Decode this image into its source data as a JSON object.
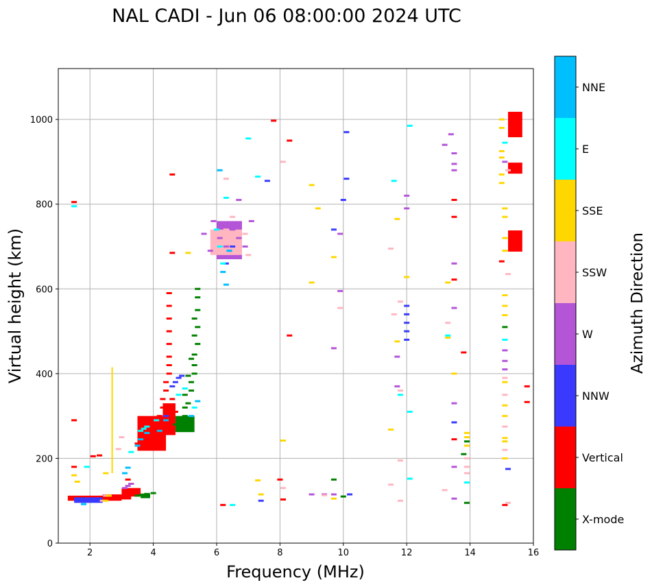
{
  "chart_data": {
    "type": "scatter",
    "title": "NAL CADI - Jun 06 08:00:00 2024 UTC",
    "xlabel": "Frequency (MHz)",
    "ylabel": "Virtual height (km)",
    "xlim": [
      1,
      16
    ],
    "ylim": [
      0,
      1120
    ],
    "xticks": [
      2,
      4,
      6,
      8,
      10,
      12,
      14,
      16
    ],
    "yticks": [
      0,
      200,
      400,
      600,
      800,
      1000
    ],
    "grid": true,
    "colorbar": {
      "title": "Azimuth Direction",
      "categories": [
        {
          "name": "X-mode",
          "color": "#008000"
        },
        {
          "name": "Vertical",
          "color": "#ff0000"
        },
        {
          "name": "NNW",
          "color": "#3a3aff"
        },
        {
          "name": "W",
          "color": "#b455d8"
        },
        {
          "name": "SSW",
          "color": "#ffb6c1"
        },
        {
          "name": "SSE",
          "color": "#ffd700"
        },
        {
          "name": "E",
          "color": "#00ffff"
        },
        {
          "name": "NNE",
          "color": "#00bfff"
        }
      ]
    },
    "series": [
      {
        "name": "X-mode",
        "points": [
          [
            3.5,
            112
          ],
          [
            3.6,
            113
          ],
          [
            3.7,
            110
          ],
          [
            3.8,
            116
          ],
          [
            4.0,
            118
          ],
          [
            4.7,
            280
          ],
          [
            4.8,
            285
          ],
          [
            4.9,
            290
          ],
          [
            5.0,
            300
          ],
          [
            5.0,
            320
          ],
          [
            5.1,
            330
          ],
          [
            5.2,
            360
          ],
          [
            5.2,
            380
          ],
          [
            5.3,
            400
          ],
          [
            5.3,
            420
          ],
          [
            5.3,
            445
          ],
          [
            5.4,
            470
          ],
          [
            5.3,
            490
          ],
          [
            5.4,
            510
          ],
          [
            5.3,
            530
          ],
          [
            5.4,
            550
          ],
          [
            5.4,
            580
          ],
          [
            5.4,
            600
          ],
          [
            5.0,
            350
          ],
          [
            5.1,
            395
          ],
          [
            5.2,
            435
          ],
          [
            13.9,
            95
          ],
          [
            13.9,
            240
          ],
          [
            13.8,
            210
          ],
          [
            15.1,
            510
          ],
          [
            10.0,
            110
          ],
          [
            9.7,
            150
          ]
        ]
      },
      {
        "name": "Vertical",
        "points": [
          [
            1.5,
            805
          ],
          [
            1.5,
            290
          ],
          [
            1.5,
            180
          ],
          [
            2.1,
            205
          ],
          [
            2.3,
            207
          ],
          [
            3.2,
            150
          ],
          [
            3.3,
            140
          ],
          [
            3.5,
            235
          ],
          [
            3.6,
            228
          ],
          [
            3.7,
            240
          ],
          [
            3.8,
            250
          ],
          [
            3.9,
            262
          ],
          [
            4.0,
            255
          ],
          [
            4.1,
            270
          ],
          [
            4.1,
            285
          ],
          [
            4.2,
            300
          ],
          [
            4.3,
            320
          ],
          [
            4.3,
            340
          ],
          [
            4.4,
            360
          ],
          [
            4.4,
            380
          ],
          [
            4.5,
            400
          ],
          [
            4.5,
            420
          ],
          [
            4.5,
            440
          ],
          [
            4.5,
            470
          ],
          [
            4.5,
            500
          ],
          [
            4.5,
            530
          ],
          [
            4.5,
            560
          ],
          [
            4.5,
            590
          ],
          [
            4.6,
            340
          ],
          [
            4.7,
            310
          ],
          [
            4.6,
            685
          ],
          [
            4.6,
            870
          ],
          [
            8.3,
            950
          ],
          [
            8.3,
            490
          ],
          [
            8.0,
            150
          ],
          [
            8.1,
            103
          ],
          [
            6.2,
            90
          ],
          [
            7.8,
            997
          ],
          [
            13.5,
            770
          ],
          [
            13.5,
            810
          ],
          [
            13.5,
            622
          ],
          [
            13.5,
            245
          ],
          [
            13.8,
            450
          ],
          [
            15.0,
            665
          ],
          [
            15.1,
            90
          ],
          [
            15.8,
            333
          ],
          [
            15.8,
            370
          ]
        ]
      },
      {
        "name": "NNW",
        "points": [
          [
            4.6,
            370
          ],
          [
            4.7,
            380
          ],
          [
            4.8,
            390
          ],
          [
            4.9,
            395
          ],
          [
            4.4,
            300
          ],
          [
            6.3,
            660
          ],
          [
            6.4,
            690
          ],
          [
            6.5,
            700
          ],
          [
            7.6,
            855
          ],
          [
            10.1,
            970
          ],
          [
            10.1,
            860
          ],
          [
            10.0,
            810
          ],
          [
            12.0,
            560
          ],
          [
            12.0,
            540
          ],
          [
            12.0,
            520
          ],
          [
            12.0,
            500
          ],
          [
            12.0,
            480
          ],
          [
            13.5,
            285
          ],
          [
            15.2,
            175
          ],
          [
            7.4,
            100
          ],
          [
            10.2,
            115
          ],
          [
            9.7,
            740
          ]
        ]
      },
      {
        "name": "W",
        "points": [
          [
            3.1,
            130
          ],
          [
            3.2,
            135
          ],
          [
            3.3,
            140
          ],
          [
            5.9,
            760
          ],
          [
            6.1,
            720
          ],
          [
            6.3,
            700
          ],
          [
            6.5,
            740
          ],
          [
            6.7,
            720
          ],
          [
            6.9,
            700
          ],
          [
            7.1,
            760
          ],
          [
            6.7,
            810
          ],
          [
            5.6,
            730
          ],
          [
            5.8,
            690
          ],
          [
            9.9,
            730
          ],
          [
            9.7,
            460
          ],
          [
            9.9,
            595
          ],
          [
            11.7,
            440
          ],
          [
            11.7,
            370
          ],
          [
            12.0,
            820
          ],
          [
            12.0,
            790
          ],
          [
            13.2,
            940
          ],
          [
            13.4,
            965
          ],
          [
            13.5,
            920
          ],
          [
            13.5,
            895
          ],
          [
            13.5,
            880
          ],
          [
            13.5,
            660
          ],
          [
            13.5,
            555
          ],
          [
            13.5,
            330
          ],
          [
            13.5,
            180
          ],
          [
            13.5,
            105
          ],
          [
            15.1,
            455
          ],
          [
            15.1,
            430
          ],
          [
            15.1,
            410
          ],
          [
            15.1,
            900
          ],
          [
            9.0,
            115
          ],
          [
            9.4,
            115
          ],
          [
            9.7,
            115
          ]
        ]
      },
      {
        "name": "SSW",
        "points": [
          [
            2.9,
            222
          ],
          [
            3.0,
            250
          ],
          [
            5.9,
            700
          ],
          [
            6.1,
            690
          ],
          [
            6.3,
            740
          ],
          [
            6.5,
            770
          ],
          [
            6.9,
            730
          ],
          [
            7.0,
            680
          ],
          [
            6.3,
            860
          ],
          [
            8.1,
            900
          ],
          [
            8.1,
            130
          ],
          [
            11.5,
            695
          ],
          [
            11.6,
            540
          ],
          [
            11.8,
            570
          ],
          [
            11.8,
            360
          ],
          [
            11.8,
            195
          ],
          [
            11.5,
            138
          ],
          [
            11.8,
            100
          ],
          [
            13.3,
            520
          ],
          [
            13.2,
            125
          ],
          [
            13.9,
            200
          ],
          [
            13.9,
            180
          ],
          [
            13.9,
            165
          ],
          [
            15.2,
            880
          ],
          [
            15.2,
            635
          ],
          [
            15.1,
            390
          ],
          [
            15.1,
            350
          ],
          [
            15.1,
            275
          ],
          [
            15.1,
            220
          ],
          [
            15.2,
            95
          ],
          [
            9.9,
            555
          ],
          [
            9.4,
            113
          ],
          [
            2.4,
            100
          ],
          [
            2.5,
            112
          ]
        ]
      },
      {
        "name": "SSE",
        "points": [
          [
            1.6,
            145
          ],
          [
            1.5,
            160
          ],
          [
            2.5,
            165
          ],
          [
            2.5,
            100
          ],
          [
            2.6,
            112
          ],
          [
            5.1,
            685
          ],
          [
            7.3,
            148
          ],
          [
            7.4,
            115
          ],
          [
            8.1,
            242
          ],
          [
            9.0,
            845
          ],
          [
            9.0,
            615
          ],
          [
            9.2,
            790
          ],
          [
            9.7,
            675
          ],
          [
            9.7,
            105
          ],
          [
            12.0,
            628
          ],
          [
            11.7,
            765
          ],
          [
            11.7,
            476
          ],
          [
            11.5,
            268
          ],
          [
            13.3,
            615
          ],
          [
            13.3,
            485
          ],
          [
            13.5,
            400
          ],
          [
            13.9,
            260
          ],
          [
            13.9,
            250
          ],
          [
            13.9,
            230
          ],
          [
            15.0,
            1000
          ],
          [
            15.0,
            980
          ],
          [
            15.0,
            925
          ],
          [
            15.0,
            910
          ],
          [
            15.0,
            870
          ],
          [
            15.0,
            850
          ],
          [
            15.1,
            790
          ],
          [
            15.1,
            770
          ],
          [
            15.1,
            720
          ],
          [
            15.1,
            690
          ],
          [
            15.1,
            585
          ],
          [
            15.1,
            560
          ],
          [
            15.1,
            538
          ],
          [
            15.1,
            380
          ],
          [
            15.1,
            325
          ],
          [
            15.1,
            300
          ],
          [
            15.1,
            248
          ],
          [
            15.1,
            240
          ],
          [
            15.1,
            200
          ]
        ]
      },
      {
        "name": "E",
        "points": [
          [
            1.5,
            795
          ],
          [
            1.9,
            180
          ],
          [
            3.3,
            215
          ],
          [
            3.6,
            265
          ],
          [
            3.7,
            270
          ],
          [
            3.8,
            275
          ],
          [
            4.1,
            290
          ],
          [
            4.8,
            350
          ],
          [
            5.0,
            365
          ],
          [
            5.3,
            320
          ],
          [
            6.0,
            740
          ],
          [
            6.1,
            700
          ],
          [
            6.2,
            660
          ],
          [
            6.3,
            815
          ],
          [
            7.0,
            955
          ],
          [
            7.3,
            865
          ],
          [
            11.6,
            855
          ],
          [
            12.1,
            985
          ],
          [
            12.1,
            310
          ],
          [
            12.1,
            152
          ],
          [
            11.8,
            350
          ],
          [
            13.3,
            490
          ],
          [
            13.9,
            143
          ],
          [
            15.1,
            945
          ],
          [
            15.1,
            480
          ],
          [
            6.5,
            90
          ]
        ]
      },
      {
        "name": "NNE",
        "points": [
          [
            1.8,
            92
          ],
          [
            3.1,
            165
          ],
          [
            3.2,
            178
          ],
          [
            3.5,
            230
          ],
          [
            3.6,
            245
          ],
          [
            3.8,
            260
          ],
          [
            4.2,
            265
          ],
          [
            4.4,
            290
          ],
          [
            5.2,
            300
          ],
          [
            5.4,
            335
          ],
          [
            6.2,
            640
          ],
          [
            6.3,
            610
          ],
          [
            6.4,
            690
          ],
          [
            6.1,
            880
          ]
        ]
      }
    ],
    "regions": [
      {
        "name": "Vertical",
        "x": [
          1.3,
          3.0
        ],
        "y": [
          100,
          112
        ]
      },
      {
        "name": "NNW",
        "x": [
          1.5,
          2.4
        ],
        "y": [
          95,
          108
        ]
      },
      {
        "name": "Vertical",
        "x": [
          2.4,
          3.3
        ],
        "y": [
          103,
          115
        ]
      },
      {
        "name": "Vertical",
        "x": [
          3.0,
          3.6
        ],
        "y": [
          110,
          130
        ]
      },
      {
        "name": "X-mode",
        "x": [
          3.6,
          3.9
        ],
        "y": [
          106,
          117
        ]
      },
      {
        "name": "Vertical",
        "x": [
          3.5,
          4.4
        ],
        "y": [
          218,
          300
        ]
      },
      {
        "name": "Vertical",
        "x": [
          4.3,
          4.7
        ],
        "y": [
          255,
          330
        ]
      },
      {
        "name": "X-mode",
        "x": [
          4.7,
          5.3
        ],
        "y": [
          262,
          300
        ]
      },
      {
        "name": "W",
        "x": [
          6.0,
          6.8
        ],
        "y": [
          670,
          760
        ]
      },
      {
        "name": "SSW",
        "x": [
          5.8,
          6.8
        ],
        "y": [
          680,
          740
        ]
      },
      {
        "name": "SSE",
        "x": [
          2.68,
          2.72
        ],
        "y": [
          165,
          415
        ]
      },
      {
        "name": "Vertical",
        "x": [
          15.2,
          15.65
        ],
        "y": [
          958,
          1018
        ]
      },
      {
        "name": "Vertical",
        "x": [
          15.2,
          15.65
        ],
        "y": [
          872,
          898
        ]
      },
      {
        "name": "Vertical",
        "x": [
          15.2,
          15.65
        ],
        "y": [
          688,
          738
        ]
      }
    ]
  }
}
